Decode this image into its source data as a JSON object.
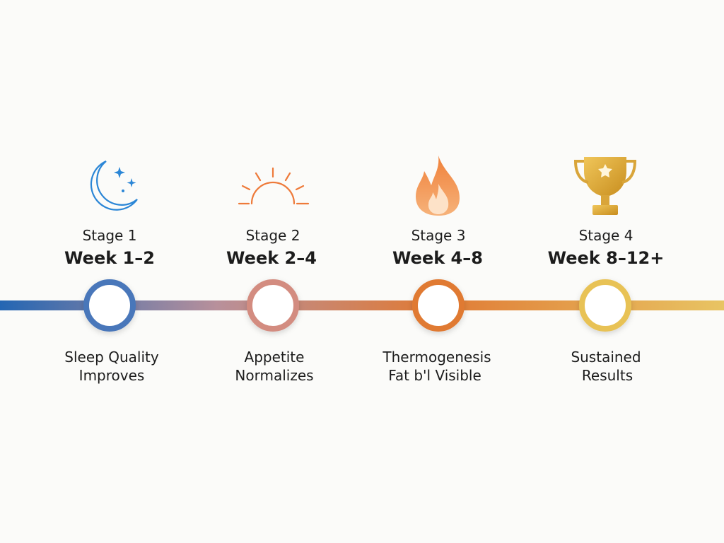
{
  "stages": [
    {
      "label": "Stage 1",
      "period": "Week 1–2",
      "description": [
        "Sleep Quality",
        "Improves"
      ]
    },
    {
      "label": "Stage 2",
      "period": "Week 2–4",
      "description": [
        "Appetite",
        "Normalizes"
      ]
    },
    {
      "label": "Stage 3",
      "period": "Week 4–8",
      "description": [
        "Thermogenesis",
        "Fat b'l Visible"
      ]
    },
    {
      "label": "Stage 4",
      "period": "Week 8–12+",
      "description": [
        "Sustained",
        "Results"
      ]
    }
  ]
}
